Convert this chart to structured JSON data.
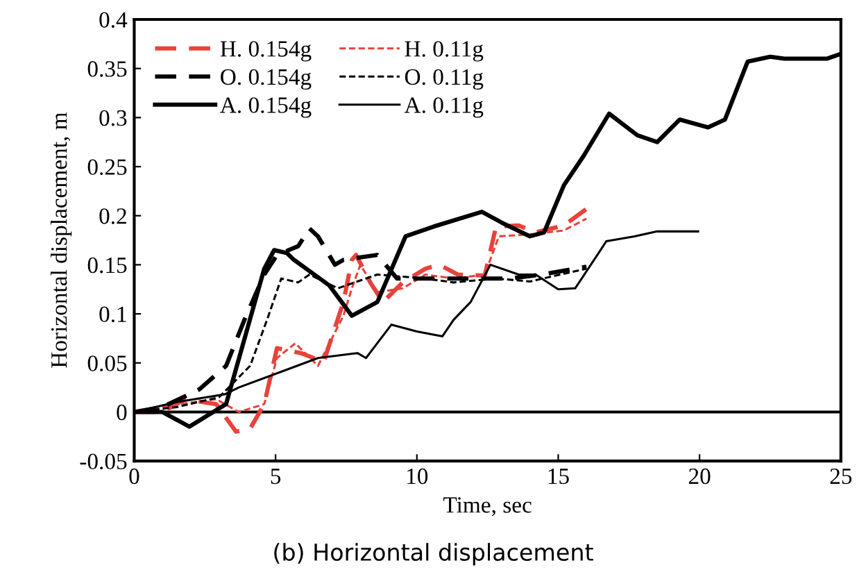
{
  "chart_data": {
    "type": "line",
    "xlabel": "Time, sec",
    "ylabel": "Horizontal displacement, m",
    "annotations": [
      "(b) Horizontal displacement"
    ],
    "xlim": [
      0,
      25
    ],
    "xticks": [
      0,
      5,
      10,
      15,
      20,
      25
    ],
    "ylim": [
      -0.05,
      0.4
    ],
    "yticks": [
      -0.05,
      0,
      0.05,
      0.1,
      0.15,
      0.2,
      0.25,
      0.3,
      0.35,
      0.4
    ],
    "grid": false,
    "legend": "top left",
    "ref_lines": [
      {
        "axis": "y",
        "value": 0,
        "color": "#000000"
      }
    ],
    "series": [
      {
        "name": "H. 0.154g",
        "color": "#e8423b",
        "line_style": "dashed",
        "x": [
          0,
          1,
          1.8,
          2.9,
          3.6,
          4.1,
          4.6,
          5.05,
          5.9,
          6.7,
          7.4,
          7.7,
          7.85,
          8.35,
          8.8,
          9.5,
          10.3,
          10.8,
          11.45,
          12.4,
          12.8,
          13.6,
          14.2,
          15.2,
          16
        ],
        "values": [
          0,
          0,
          0.013,
          0.008,
          -0.02,
          -0.017,
          0.008,
          0.065,
          0.06,
          0.051,
          0.112,
          0.155,
          0.16,
          0.132,
          0.112,
          0.132,
          0.146,
          0.15,
          0.14,
          0.139,
          0.189,
          0.19,
          0.183,
          0.19,
          0.207
        ]
      },
      {
        "name": "H. 0.11g",
        "color": "#e8423b",
        "line_style": "dotted",
        "x": [
          0,
          1.6,
          2.9,
          3.7,
          4.6,
          5.05,
          5.7,
          6.5,
          7.4,
          7.7,
          8,
          8.6,
          9.5,
          10.3,
          11.3,
          12.4,
          12.9,
          14,
          15.2,
          16
        ],
        "values": [
          0,
          0.008,
          0.013,
          0,
          0.008,
          0.055,
          0.07,
          0.047,
          0.098,
          0.126,
          0.15,
          0.122,
          0.126,
          0.14,
          0.136,
          0.14,
          0.179,
          0.181,
          0.185,
          0.197
        ]
      },
      {
        "name": "O. 0.154g",
        "color": "#000000",
        "line_style": "dashed",
        "x": [
          0,
          1,
          2.3,
          3.25,
          3.9,
          4.6,
          5.05,
          5.8,
          6.2,
          6.5,
          7.1,
          7.4,
          8.6,
          9.3,
          11.1,
          11.9,
          13.3,
          14.4,
          16
        ],
        "values": [
          0,
          0.005,
          0.023,
          0.047,
          0.094,
          0.14,
          0.16,
          0.169,
          0.187,
          0.179,
          0.15,
          0.155,
          0.16,
          0.136,
          0.136,
          0.136,
          0.136,
          0.14,
          0.148
        ]
      },
      {
        "name": "O. 0.11g",
        "color": "#000000",
        "line_style": "dotted",
        "x": [
          0,
          1.5,
          3,
          4.1,
          4.7,
          5.2,
          5.8,
          6.2,
          7.2,
          8.6,
          10.3,
          11.3,
          12.8,
          14,
          16
        ],
        "values": [
          0,
          0.005,
          0.015,
          0.047,
          0.094,
          0.136,
          0.132,
          0.14,
          0.126,
          0.14,
          0.136,
          0.132,
          0.136,
          0.133,
          0.146
        ]
      },
      {
        "name": "A. 0.154g",
        "color": "#000000",
        "line_style": "solid",
        "x": [
          0,
          1,
          1.95,
          3.25,
          4.6,
          4.95,
          5.4,
          5.65,
          6.9,
          7.7,
          8.6,
          9.6,
          10.6,
          12.3,
          13,
          14,
          14.5,
          15.2,
          15.9,
          16.8,
          17.8,
          18.5,
          19.3,
          20.3,
          20.9,
          21.7,
          22.5,
          23,
          24.5,
          25
        ],
        "values": [
          0,
          0,
          -0.015,
          0.008,
          0.146,
          0.165,
          0.162,
          0.155,
          0.129,
          0.098,
          0.112,
          0.179,
          0.189,
          0.204,
          0.193,
          0.179,
          0.183,
          0.231,
          0.261,
          0.304,
          0.282,
          0.275,
          0.298,
          0.29,
          0.298,
          0.357,
          0.362,
          0.36,
          0.36,
          0.365
        ]
      },
      {
        "name": "A. 0.11g",
        "color": "#000000",
        "line_style": "solid",
        "x": [
          0,
          1.5,
          3.2,
          3.7,
          5.2,
          6.5,
          7.9,
          8.2,
          9.1,
          10,
          10.9,
          11.3,
          11.9,
          12.6,
          13.6,
          14.2,
          15,
          15.6,
          16.5,
          16.7,
          17.7,
          18.5,
          19.95
        ],
        "values": [
          0,
          0.01,
          0.018,
          0.025,
          0.041,
          0.055,
          0.06,
          0.055,
          0.089,
          0.082,
          0.077,
          0.094,
          0.112,
          0.15,
          0.14,
          0.14,
          0.125,
          0.126,
          0.165,
          0.174,
          0.179,
          0.184,
          0.184
        ]
      }
    ]
  }
}
